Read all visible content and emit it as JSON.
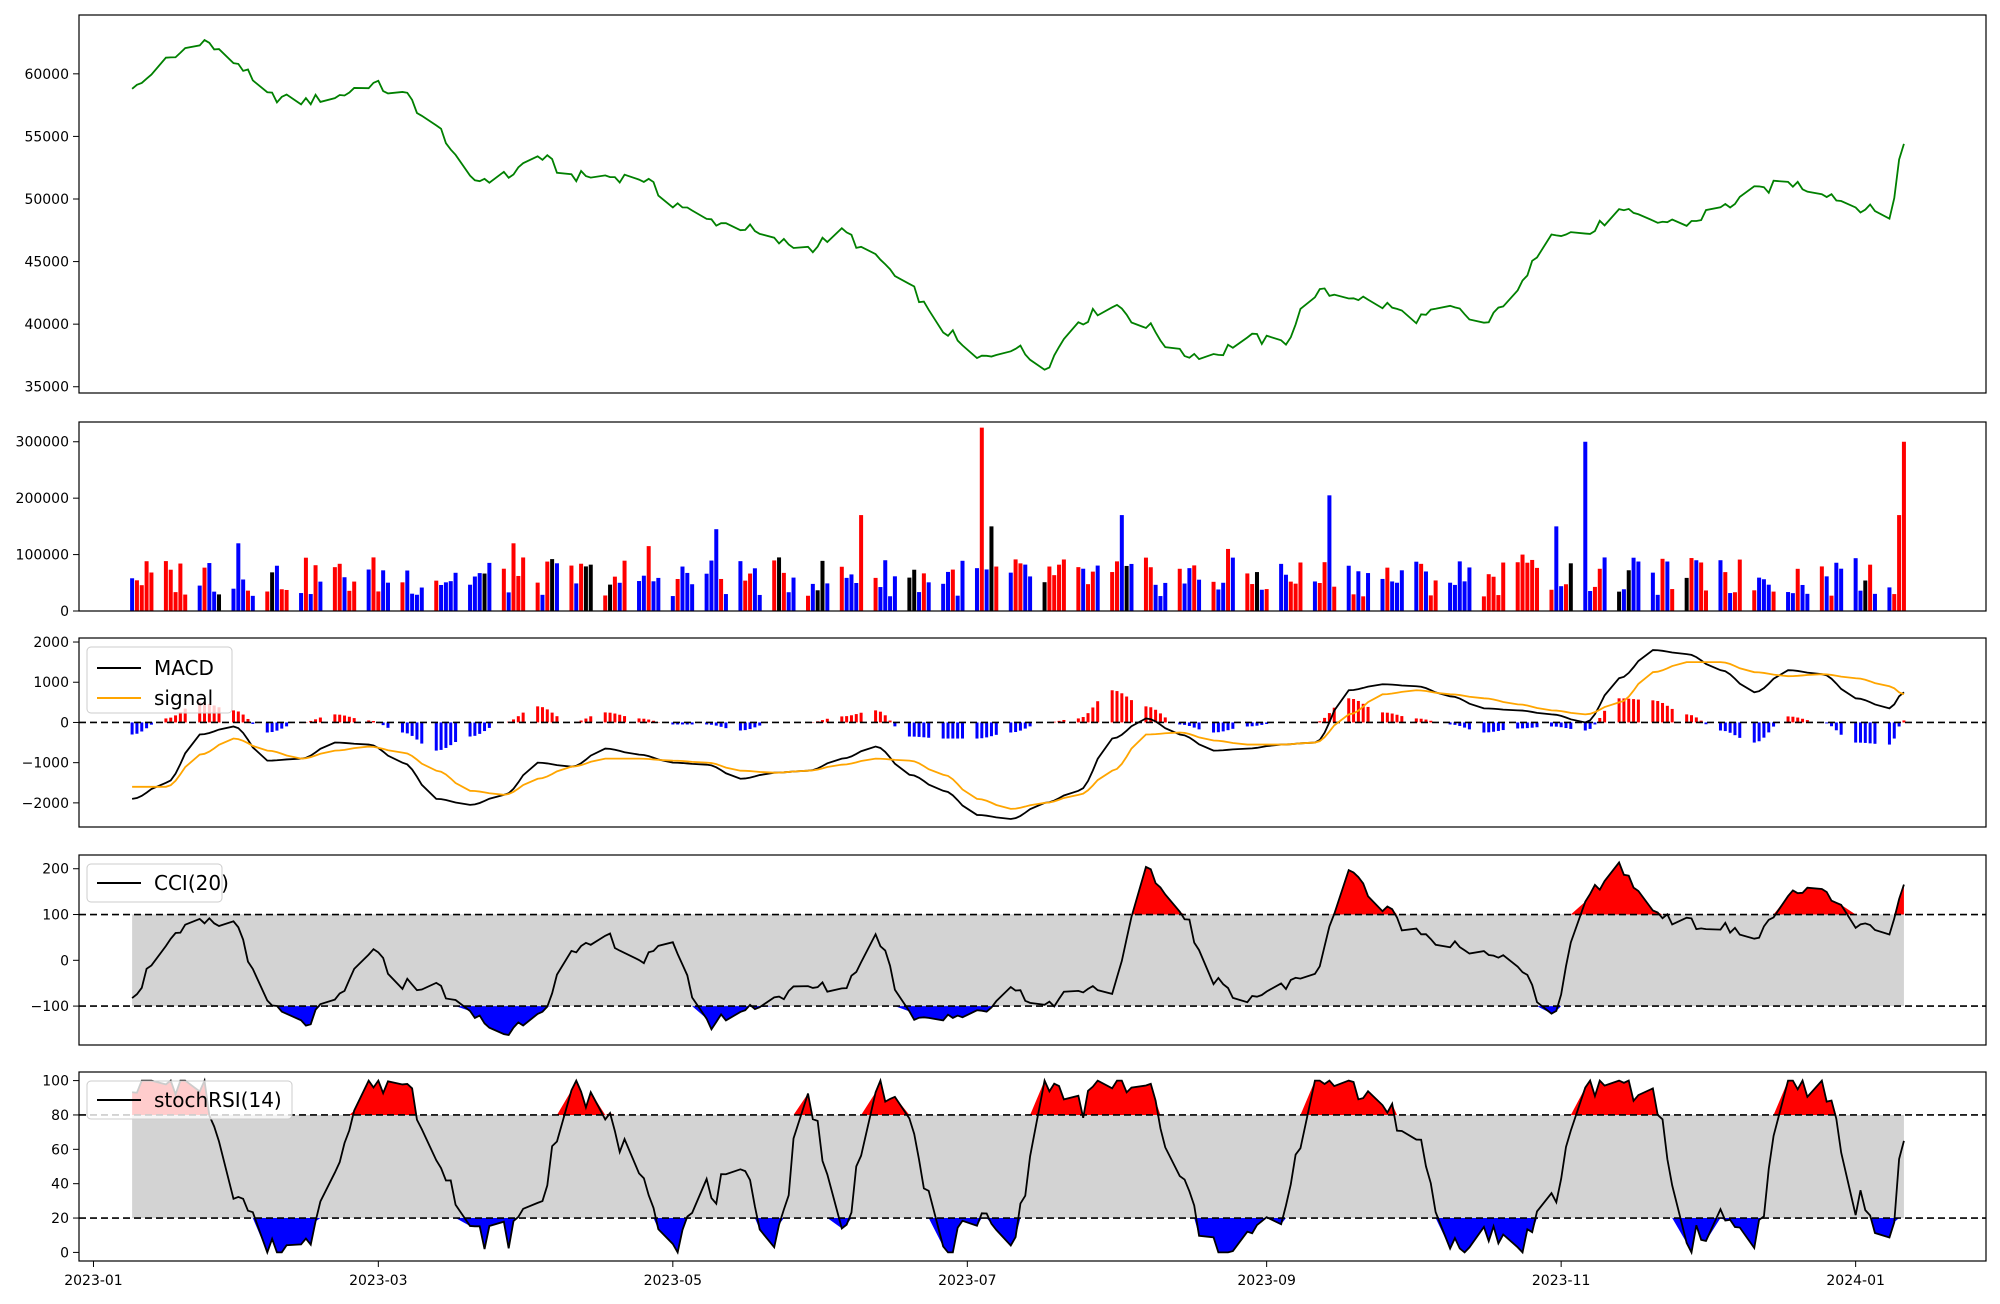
{
  "chart_data": [
    {
      "panel": "price",
      "type": "line",
      "color": "#008000",
      "ylim": [
        34500,
        64700
      ],
      "yticks": [
        35000,
        40000,
        45000,
        50000,
        55000,
        60000
      ],
      "ytick_labels": [
        "35000",
        "40000",
        "45000",
        "50000",
        "55000",
        "60000"
      ],
      "x": [
        "2023-01-09",
        "2023-01-16",
        "2023-01-23",
        "2023-01-30",
        "2023-02-06",
        "2023-02-13",
        "2023-02-20",
        "2023-02-27",
        "2023-03-06",
        "2023-03-13",
        "2023-03-20",
        "2023-03-27",
        "2023-04-03",
        "2023-04-10",
        "2023-04-17",
        "2023-04-24",
        "2023-05-01",
        "2023-05-08",
        "2023-05-15",
        "2023-05-22",
        "2023-05-29",
        "2023-06-05",
        "2023-06-12",
        "2023-06-19",
        "2023-06-26",
        "2023-07-03",
        "2023-07-10",
        "2023-07-17",
        "2023-07-24",
        "2023-07-31",
        "2023-08-07",
        "2023-08-14",
        "2023-08-21",
        "2023-08-28",
        "2023-09-04",
        "2023-09-11",
        "2023-09-18",
        "2023-09-25",
        "2023-10-02",
        "2023-10-09",
        "2023-10-16",
        "2023-10-23",
        "2023-10-30",
        "2023-11-06",
        "2023-11-13",
        "2023-11-20",
        "2023-11-27",
        "2023-12-04",
        "2023-12-11",
        "2023-12-18",
        "2023-12-25",
        "2024-01-01",
        "2024-01-08",
        "2024-01-11"
      ],
      "values": [
        58800,
        61000,
        62700,
        61000,
        58200,
        57800,
        58200,
        59200,
        58300,
        55600,
        51500,
        51800,
        53400,
        51800,
        51800,
        51700,
        49700,
        48300,
        47800,
        46600,
        46100,
        47300,
        45200,
        42800,
        39500,
        37200,
        38200,
        36800,
        40300,
        41600,
        39800,
        37600,
        37600,
        38900,
        38500,
        42500,
        42300,
        41500,
        40500,
        41200,
        40000,
        42900,
        47500,
        47200,
        48900,
        48200,
        48100,
        49300,
        50600,
        51300,
        50600,
        49400,
        48700,
        54400
      ]
    },
    {
      "panel": "volume",
      "type": "bar",
      "ylim": [
        0,
        335000
      ],
      "yticks": [
        0,
        100000,
        200000,
        300000
      ],
      "ytick_labels": [
        "0",
        "100000",
        "200000",
        "300000"
      ],
      "colors": {
        "up": "#ff0000",
        "down": "#0000ff",
        "flat": "#000000"
      },
      "anchors_x": [
        "2023-01-09",
        "2023-01-25",
        "2023-01-31",
        "2023-02-28",
        "2023-03-29",
        "2023-04-20",
        "2023-04-26",
        "2023-05-10",
        "2023-06-09",
        "2023-07-04",
        "2023-07-06",
        "2023-08-02",
        "2023-08-24",
        "2023-09-14",
        "2023-10-24",
        "2023-10-31",
        "2023-11-06",
        "2023-11-20",
        "2023-12-04",
        "2023-12-29",
        "2024-01-09",
        "2024-01-10",
        "2024-01-11"
      ],
      "anchors_values": [
        58000,
        85000,
        120000,
        95000,
        120000,
        50000,
        115000,
        145000,
        170000,
        325000,
        150000,
        170000,
        110000,
        205000,
        100000,
        150000,
        300000,
        68000,
        90000,
        75000,
        30000,
        170000,
        300000
      ]
    },
    {
      "panel": "macd",
      "type": "line",
      "ylim": [
        -2600,
        2100
      ],
      "yticks": [
        -2000,
        -1000,
        0,
        1000,
        2000
      ],
      "ytick_labels": [
        "−2000",
        "−1000",
        "0",
        "1000",
        "2000"
      ],
      "reference_line": 0,
      "legend": "top-left",
      "series": [
        {
          "name": "MACD",
          "color": "#000000",
          "values": [
            -1900,
            -1500,
            -300,
            -100,
            -950,
            -900,
            -500,
            -550,
            -1000,
            -1900,
            -2050,
            -1800,
            -1000,
            -1100,
            -650,
            -800,
            -1000,
            -1050,
            -1400,
            -1250,
            -1200,
            -900,
            -600,
            -1300,
            -1700,
            -2300,
            -2400,
            -2000,
            -1700,
            -400,
            100,
            -300,
            -700,
            -650,
            -550,
            -500,
            800,
            950,
            900,
            650,
            350,
            300,
            200,
            0,
            1100,
            1800,
            1700,
            1300,
            750,
            1300,
            1200,
            600,
            350,
            750
          ]
        },
        {
          "name": "signal",
          "color": "#ffa500",
          "values": [
            -1600,
            -1600,
            -800,
            -400,
            -700,
            -900,
            -700,
            -600,
            -750,
            -1200,
            -1700,
            -1800,
            -1400,
            -1100,
            -900,
            -900,
            -950,
            -1000,
            -1200,
            -1250,
            -1200,
            -1050,
            -900,
            -950,
            -1300,
            -1900,
            -2150,
            -2000,
            -1800,
            -1200,
            -300,
            -250,
            -450,
            -550,
            -550,
            -500,
            200,
            700,
            800,
            700,
            600,
            450,
            300,
            200,
            500,
            1250,
            1500,
            1500,
            1250,
            1150,
            1200,
            1100,
            900,
            700
          ]
        }
      ],
      "histogram": {
        "up_color": "#ff0000",
        "down_color": "#0000ff"
      }
    },
    {
      "panel": "cci",
      "type": "area",
      "ylim": [
        -185,
        230
      ],
      "yticks": [
        -100,
        0,
        100,
        200
      ],
      "ytick_labels": [
        "−100",
        "0",
        "100",
        "200"
      ],
      "thresholds": [
        -100,
        100
      ],
      "legend": "top-left",
      "series": [
        {
          "name": "CCI(20)",
          "color": "#000000",
          "values": [
            -70,
            40,
            80,
            80,
            -100,
            -140,
            -90,
            20,
            -50,
            -60,
            -120,
            -160,
            -110,
            10,
            50,
            0,
            30,
            -140,
            -110,
            -80,
            -60,
            -60,
            50,
            -120,
            -120,
            -120,
            -60,
            -100,
            -60,
            -60,
            190,
            110,
            -50,
            -80,
            -60,
            -20,
            200,
            110,
            60,
            40,
            10,
            -10,
            -130,
            140,
            200,
            110,
            80,
            70,
            50,
            140,
            150,
            80,
            50,
            160
          ]
        }
      ],
      "colors": {
        "above": "#ff0000",
        "below": "#0000ff",
        "band": "#d3d3d3"
      }
    },
    {
      "panel": "stochrsi",
      "type": "area",
      "ylim": [
        -5,
        105
      ],
      "yticks": [
        0,
        20,
        40,
        60,
        80,
        100
      ],
      "ytick_labels": [
        "0",
        "20",
        "40",
        "60",
        "80",
        "100"
      ],
      "thresholds": [
        20,
        80
      ],
      "legend": "top-left",
      "series": [
        {
          "name": "stochRSI(14)",
          "color": "#000000",
          "values": [
            100,
            100,
            100,
            30,
            5,
            0,
            55,
            100,
            100,
            60,
            10,
            10,
            30,
            100,
            75,
            50,
            5,
            35,
            40,
            10,
            90,
            10,
            100,
            70,
            0,
            20,
            5,
            100,
            85,
            100,
            95,
            40,
            0,
            10,
            20,
            100,
            95,
            90,
            60,
            5,
            10,
            5,
            30,
            100,
            95,
            90,
            5,
            20,
            10,
            100,
            95,
            30,
            10,
            60
          ]
        }
      ],
      "colors": {
        "above": "#ff0000",
        "below": "#0000ff",
        "band": "#d3d3d3"
      }
    }
  ],
  "x_axis": {
    "start": "2022-12-29",
    "end": "2024-01-28",
    "ticks": [
      "2023-01-01",
      "2023-03-01",
      "2023-05-01",
      "2023-07-01",
      "2023-09-01",
      "2023-11-01",
      "2024-01-01"
    ],
    "tick_labels": [
      "2023-01",
      "2023-03",
      "2023-05",
      "2023-07",
      "2023-09",
      "2023-11",
      "2024-01"
    ]
  }
}
